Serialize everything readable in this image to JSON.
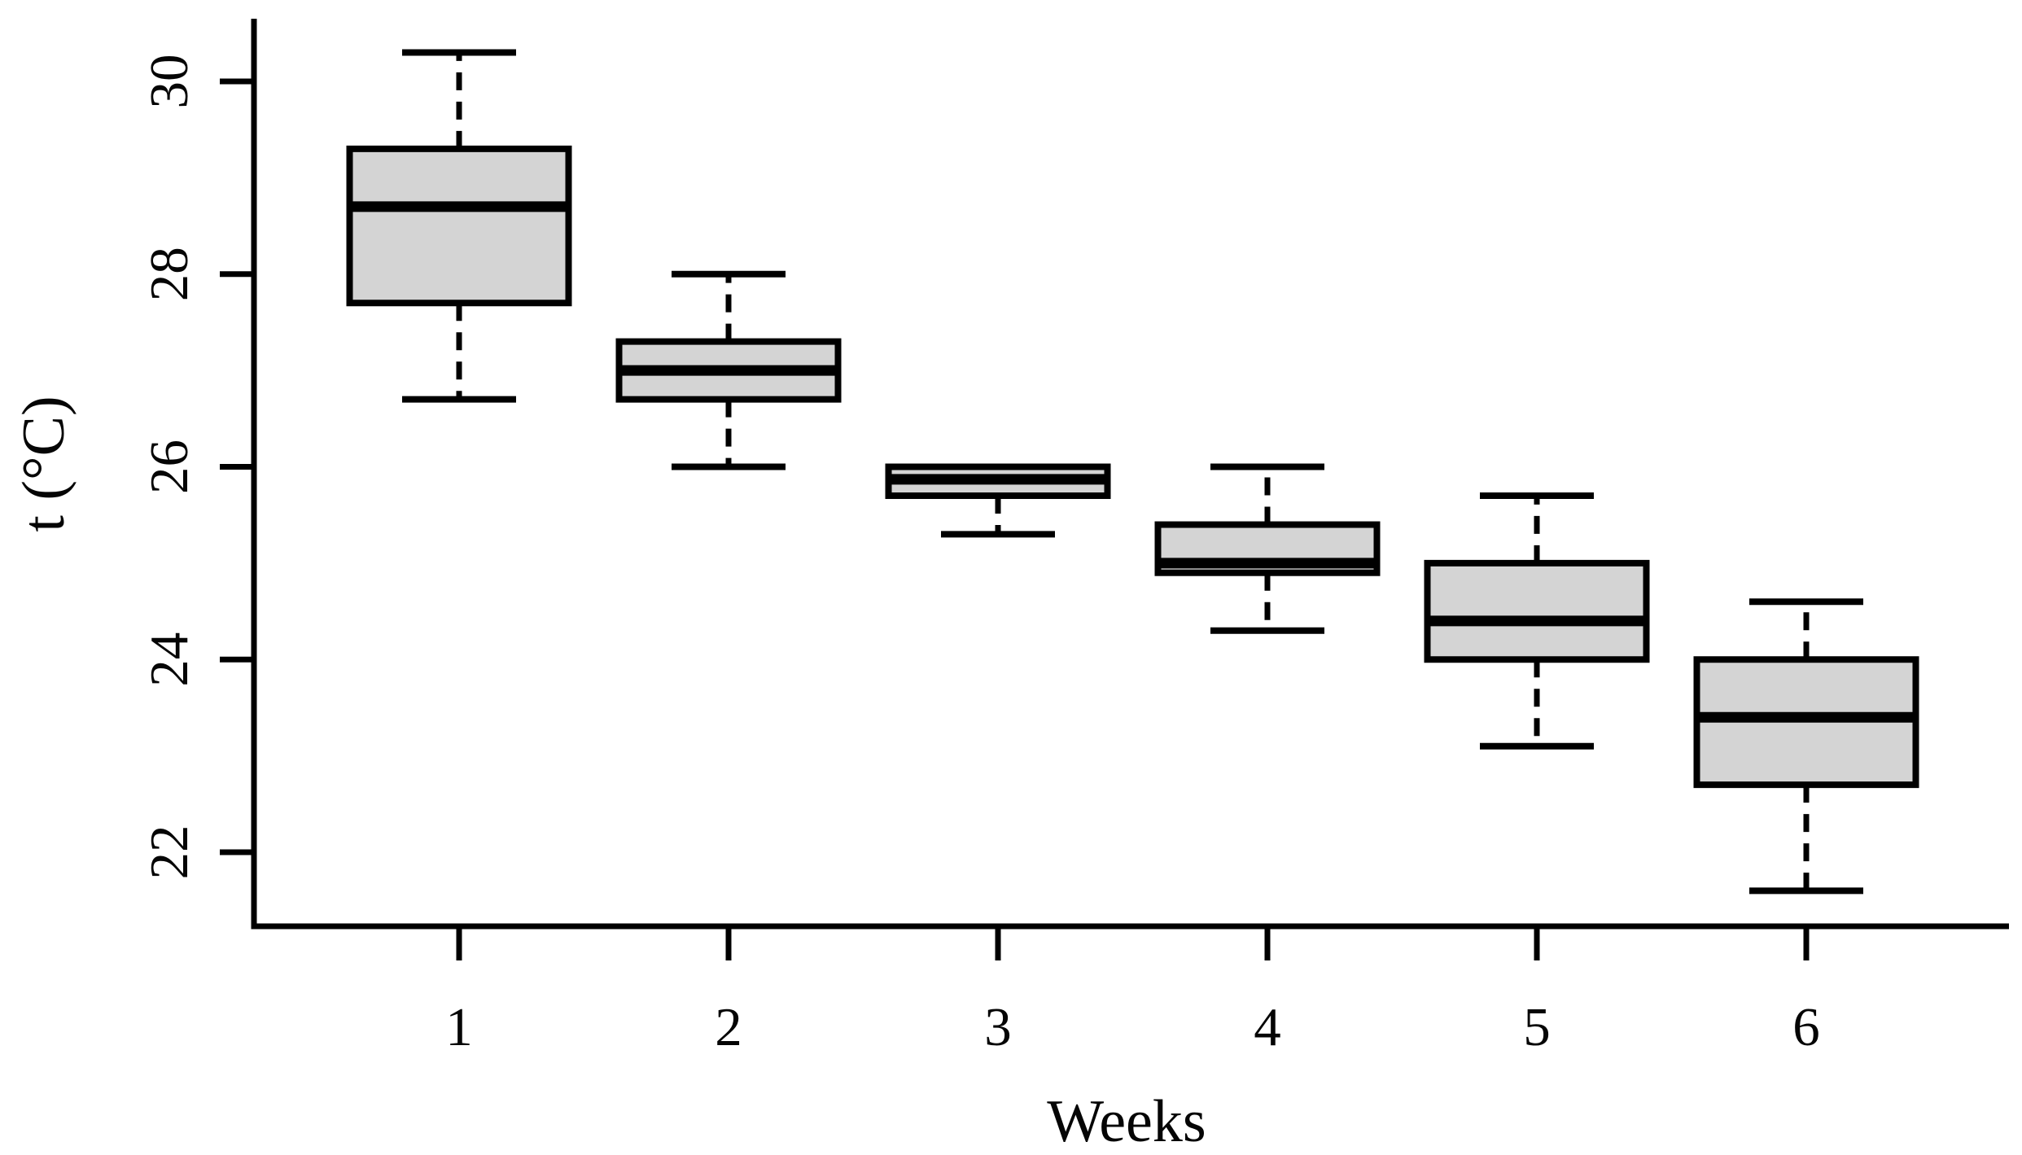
{
  "chart_data": {
    "type": "boxplot",
    "title": "",
    "xlabel": "Weeks",
    "ylabel": "t (°C)",
    "categories": [
      "1",
      "2",
      "3",
      "4",
      "5",
      "6"
    ],
    "y_ticks": [
      22,
      24,
      26,
      28,
      30
    ],
    "ylim": [
      21.2,
      30.65
    ],
    "grid": false,
    "legend": "none",
    "box_fill": "#d4d4d4",
    "line_color": "#000000",
    "whisker_style": "dashed",
    "series": [
      {
        "week": "1",
        "min": 26.7,
        "q1": 27.7,
        "median": 28.7,
        "q3": 29.3,
        "max": 30.3
      },
      {
        "week": "2",
        "min": 26.0,
        "q1": 26.7,
        "median": 27.0,
        "q3": 27.3,
        "max": 28.0
      },
      {
        "week": "3",
        "min": 25.3,
        "q1": 25.7,
        "median": 25.87,
        "q3": 26.0,
        "max": 26.0
      },
      {
        "week": "4",
        "min": 24.3,
        "q1": 24.9,
        "median": 25.0,
        "q3": 25.4,
        "max": 26.0
      },
      {
        "week": "5",
        "min": 23.1,
        "q1": 24.0,
        "median": 24.4,
        "q3": 25.0,
        "max": 25.7
      },
      {
        "week": "6",
        "min": 21.6,
        "q1": 22.7,
        "median": 23.4,
        "q3": 24.0,
        "max": 24.6
      }
    ]
  }
}
